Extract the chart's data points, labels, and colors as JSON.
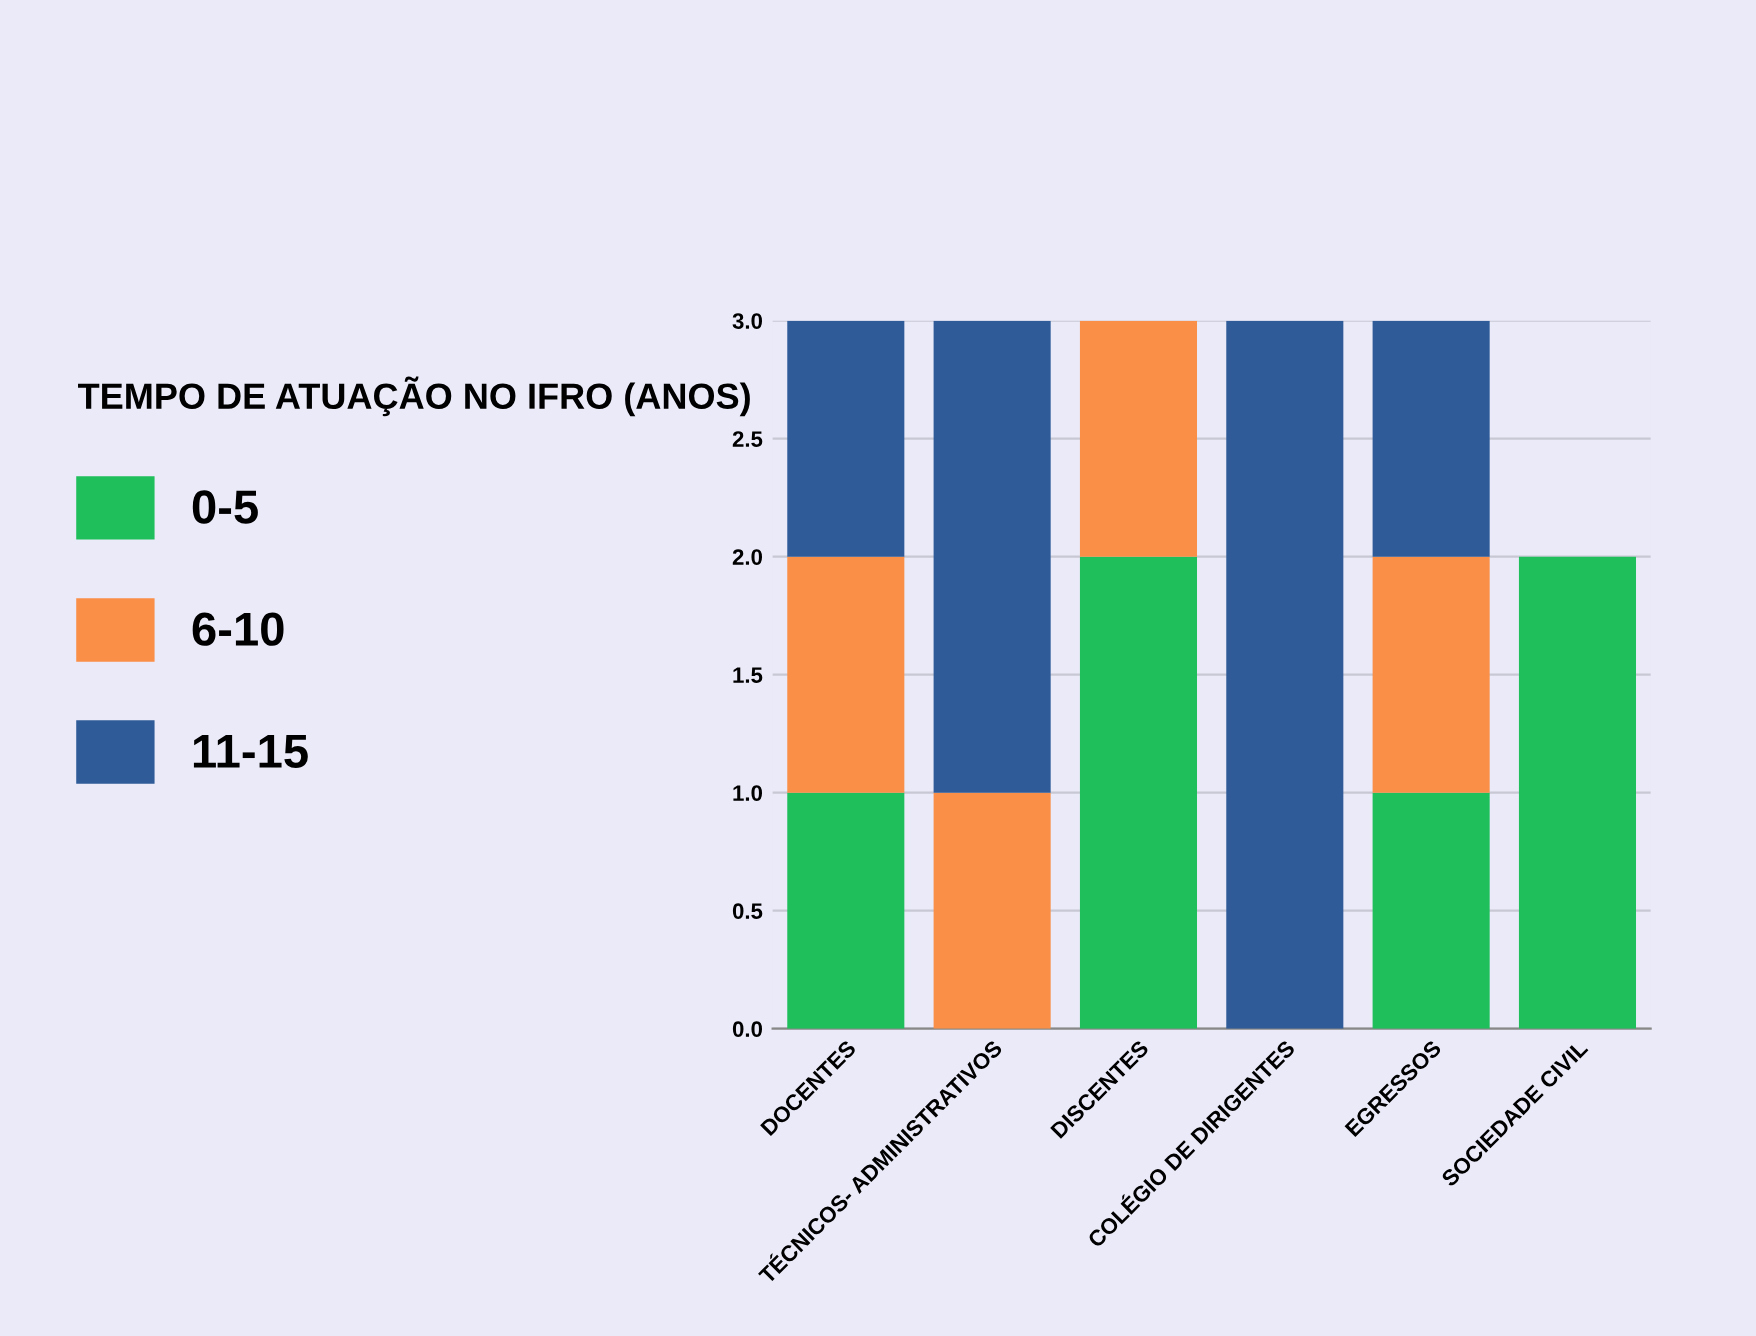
{
  "chart_data": {
    "type": "bar",
    "stacked": true,
    "legend_title": "TEMPO DE ATUAÇÃO NO IFRO (ANOS)",
    "legend": "left",
    "grid": "y",
    "categories": [
      "DOCENTES",
      "TÉCNICOS- ADMINISTRATIVOS",
      "DISCENTES",
      "COLÉGIO DE DIRIGENTES",
      "EGRESSOS",
      "SOCIEDADE CIVIL"
    ],
    "series": [
      {
        "name": "0-5",
        "color": "#1fbf5c",
        "values": [
          1,
          0,
          2,
          0,
          1,
          2
        ]
      },
      {
        "name": "6-10",
        "color": "#fa8f47",
        "values": [
          1,
          1,
          1,
          0,
          1,
          0
        ]
      },
      {
        "name": "11-15",
        "color": "#2f5c98",
        "values": [
          1,
          2,
          0,
          3,
          1,
          0
        ]
      }
    ],
    "ylim": [
      0,
      3
    ],
    "yticks": [
      {
        "value": 0,
        "label": "0.0"
      },
      {
        "value": 0.5,
        "label": "0.5"
      },
      {
        "value": 1,
        "label": "1.0"
      },
      {
        "value": 1.5,
        "label": "1.5"
      },
      {
        "value": 2,
        "label": "2.0"
      },
      {
        "value": 2.5,
        "label": "2.5"
      },
      {
        "value": 3,
        "label": "3.0"
      }
    ]
  }
}
